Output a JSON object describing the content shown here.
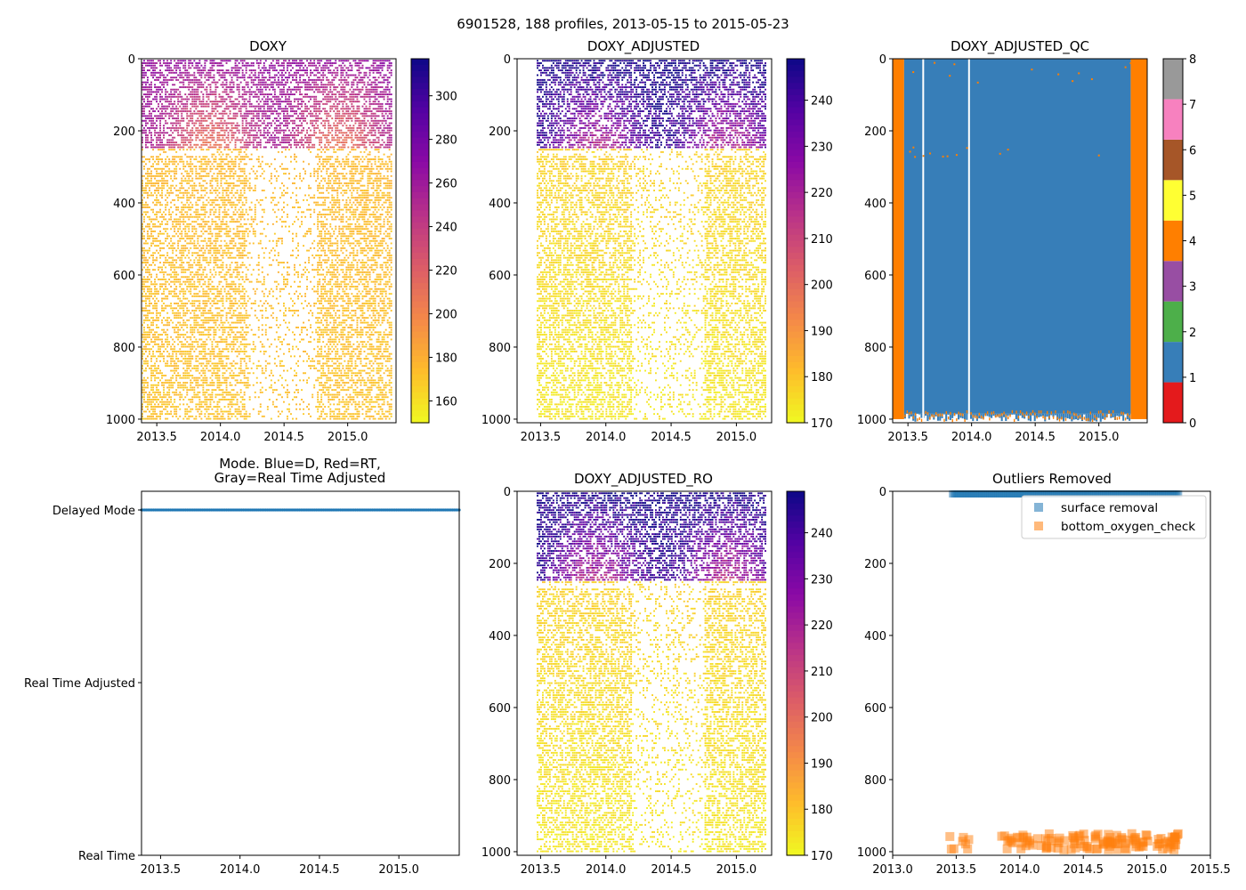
{
  "figure_title": "6901528, 188 profiles, 2013-05-15 to 2015-05-23",
  "chart_data": [
    {
      "id": "doxy",
      "type": "heatmap",
      "title": "DOXY",
      "x_ticks": [
        "2013.5",
        "2014.0",
        "2014.5",
        "2015.0"
      ],
      "xlim": [
        2013.38,
        2015.38
      ],
      "ylim": [
        1010,
        0
      ],
      "y_ticks": [
        "0",
        "200",
        "400",
        "600",
        "800",
        "1000"
      ],
      "colorbar": {
        "cmap": "plasma_r",
        "range": [
          150,
          317
        ],
        "ticks": [
          "160",
          "180",
          "200",
          "220",
          "240",
          "260",
          "280",
          "300"
        ]
      },
      "data_summary": {
        "profiles": 188,
        "x_range": [
          2013.38,
          2015.35
        ],
        "depth_range": [
          0,
          1000
        ],
        "surface_0_250": [
          205,
          265
        ],
        "deep_250_1000": [
          160,
          185
        ],
        "max_value_near_surface_end": 317
      }
    },
    {
      "id": "doxy_adjusted",
      "type": "heatmap",
      "title": "DOXY_ADJUSTED",
      "x_ticks": [
        "2013.5",
        "2014.0",
        "2014.5",
        "2015.0"
      ],
      "xlim": [
        2013.32,
        2015.27
      ],
      "ylim": [
        1010,
        0
      ],
      "y_ticks": [
        "0",
        "200",
        "400",
        "600",
        "800",
        "1000"
      ],
      "colorbar": {
        "cmap": "plasma_r",
        "range": [
          170,
          249
        ],
        "ticks": [
          "170",
          "180",
          "190",
          "200",
          "210",
          "220",
          "230",
          "240"
        ]
      },
      "data_summary": {
        "x_range": [
          2013.47,
          2015.23
        ],
        "depth_range": [
          0,
          1000
        ],
        "surface_0_250": [
          215,
          249
        ],
        "deep_250_1000": [
          170,
          182
        ]
      }
    },
    {
      "id": "doxy_adjusted_qc",
      "type": "heatmap",
      "title": "DOXY_ADJUSTED_QC",
      "x_ticks": [
        "2013.5",
        "2014.0",
        "2014.5",
        "2015.0"
      ],
      "xlim": [
        2013.38,
        2015.38
      ],
      "ylim": [
        1010,
        0
      ],
      "y_ticks": [
        "0",
        "200",
        "400",
        "600",
        "800",
        "1000"
      ],
      "colorbar": {
        "cmap": "Set1",
        "range": [
          0,
          8
        ],
        "ticks": [
          "0",
          "1",
          "2",
          "3",
          "4",
          "5",
          "6",
          "7",
          "8"
        ],
        "colors": [
          "#e41a1c",
          "#377eb8",
          "#4daf4a",
          "#984ea3",
          "#ff7f00",
          "#ffff33",
          "#a65628",
          "#f781bf",
          "#999999"
        ]
      },
      "data_summary": {
        "flag_4_ranges": [
          [
            2013.38,
            2013.47
          ],
          [
            2015.25,
            2015.38
          ]
        ],
        "flag_1_range": [
          2013.47,
          2015.25
        ],
        "gap_columns": [
          2013.62,
          2013.98
        ]
      }
    },
    {
      "id": "mode",
      "type": "scatter",
      "title_line1": "Mode. Blue=D, Red=RT,",
      "title_line2": "Gray=Real Time Adjusted",
      "x_ticks": [
        "2013.5",
        "2014.0",
        "2014.5",
        "2015.0"
      ],
      "xlim": [
        2013.38,
        2015.38
      ],
      "y_categories": [
        "Delayed Mode",
        "Real Time Adjusted",
        "Real Time"
      ],
      "series": [
        {
          "name": "Delayed Mode",
          "color": "#1f77b4",
          "x_range": [
            2013.38,
            2015.38
          ],
          "count": 188,
          "y": "Delayed Mode"
        }
      ]
    },
    {
      "id": "doxy_adjusted_ro",
      "type": "heatmap",
      "title": "DOXY_ADJUSTED_RO",
      "x_ticks": [
        "2013.5",
        "2014.0",
        "2014.5",
        "2015.0"
      ],
      "xlim": [
        2013.32,
        2015.27
      ],
      "ylim": [
        1010,
        0
      ],
      "y_ticks": [
        "0",
        "200",
        "400",
        "600",
        "800",
        "1000"
      ],
      "colorbar": {
        "cmap": "plasma_r",
        "range": [
          170,
          249
        ],
        "ticks": [
          "170",
          "180",
          "190",
          "200",
          "210",
          "220",
          "230",
          "240"
        ]
      },
      "data_summary": {
        "x_range": [
          2013.47,
          2015.23
        ],
        "depth_range": [
          0,
          1000
        ],
        "surface_0_250": [
          215,
          249
        ],
        "deep_250_1000": [
          170,
          182
        ]
      }
    },
    {
      "id": "outliers",
      "type": "scatter",
      "title": "Outliers Removed",
      "x_ticks": [
        "2013.0",
        "2013.5",
        "2014.0",
        "2014.5",
        "2015.0",
        "2015.5"
      ],
      "xlim": [
        2013.0,
        2015.5
      ],
      "ylim": [
        1010,
        0
      ],
      "y_ticks": [
        "0",
        "200",
        "400",
        "600",
        "800",
        "1000"
      ],
      "legend": {
        "location": "upper right",
        "entries": [
          "surface removal",
          "bottom_oxygen_check"
        ]
      },
      "series": [
        {
          "name": "surface removal",
          "color": "#1f77b4",
          "x_range": [
            2013.47,
            2015.25
          ],
          "depth_range": [
            0,
            2
          ]
        },
        {
          "name": "bottom_oxygen_check",
          "color": "#ff7f0e",
          "x_range": [
            2013.45,
            2015.25
          ],
          "depth_range": [
            940,
            1000
          ]
        }
      ]
    }
  ]
}
